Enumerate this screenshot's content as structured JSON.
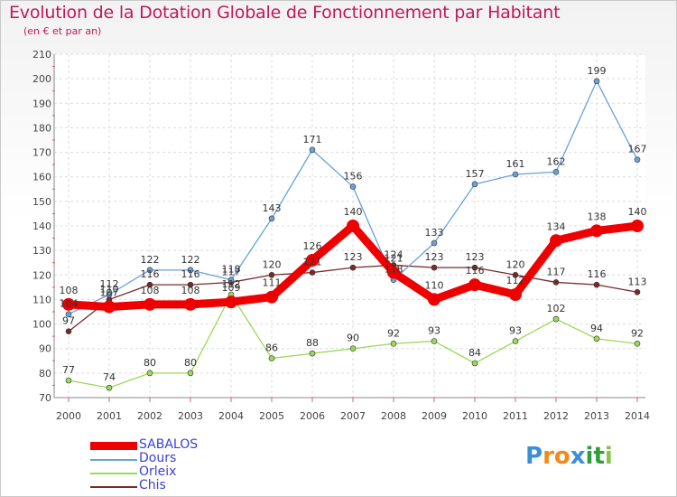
{
  "title": "Evolution de la Dotation Globale de Fonctionnement par Habitant",
  "subtitle": "(en € et par an)",
  "logo": "Proxiti",
  "chart_data": {
    "type": "line",
    "title": "Evolution de la Dotation Globale de Fonctionnement par Habitant",
    "ylabel": "(en € et par an)",
    "xlabel": "",
    "x": [
      2000,
      2001,
      2002,
      2003,
      2004,
      2005,
      2006,
      2007,
      2008,
      2009,
      2010,
      2011,
      2012,
      2013,
      2014
    ],
    "ylim": [
      70,
      210
    ],
    "yticks": [
      70,
      80,
      90,
      100,
      110,
      120,
      130,
      140,
      150,
      160,
      170,
      180,
      190,
      200,
      210
    ],
    "grid": true,
    "legend": "bottom-left",
    "series": [
      {
        "name": "SABALOS",
        "color": "#ee0000",
        "values": [
          108,
          107,
          108,
          108,
          109,
          111,
          126,
          140,
          121,
          110,
          116,
          112,
          134,
          138,
          140
        ]
      },
      {
        "name": "Dours",
        "color": "#6aa2d8",
        "values": [
          104,
          112,
          122,
          122,
          118,
          143,
          171,
          156,
          118,
          133,
          157,
          161,
          162,
          199,
          167
        ]
      },
      {
        "name": "Orleix",
        "color": "#9ad95a",
        "values": [
          77,
          74,
          80,
          80,
          112,
          86,
          88,
          90,
          92,
          93,
          84,
          93,
          102,
          94,
          92
        ]
      },
      {
        "name": "Chis",
        "color": "#7a2a2a",
        "values": [
          97,
          110,
          116,
          116,
          117,
          120,
          121,
          123,
          124,
          123,
          123,
          120,
          117,
          116,
          113
        ]
      }
    ]
  }
}
